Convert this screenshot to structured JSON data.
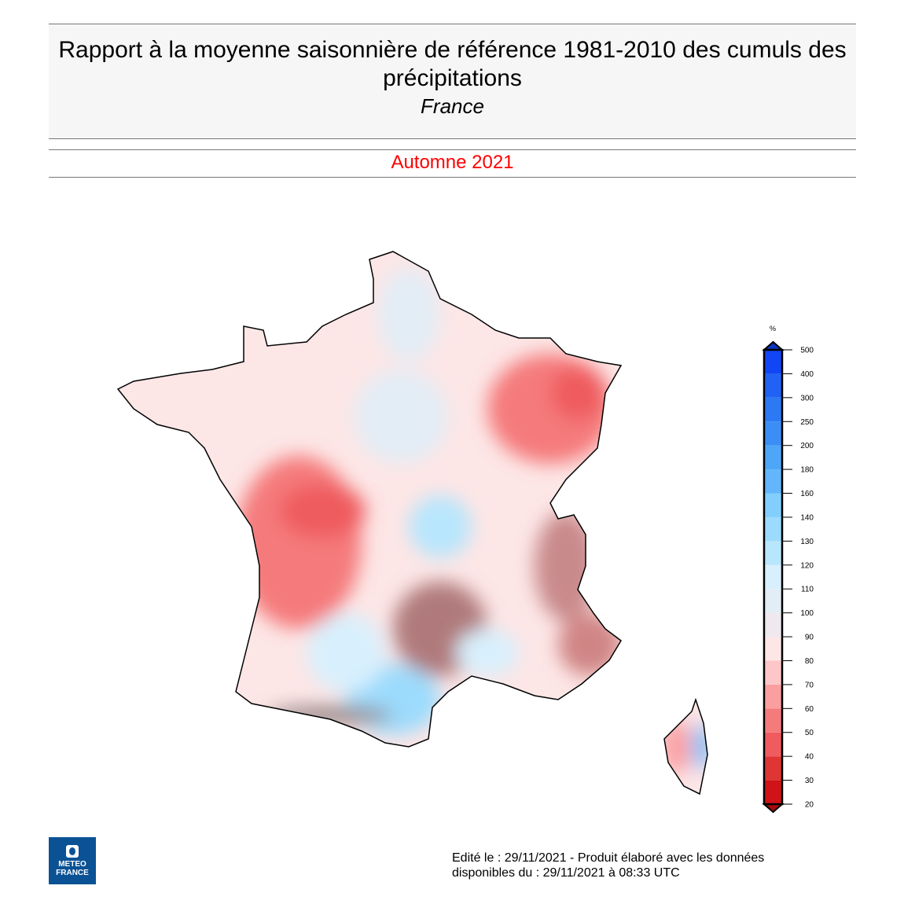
{
  "header": {
    "title": "Rapport à la moyenne saisonnière de référence 1981-2010 des cumuls des précipitations",
    "region": "France",
    "period": "Automne 2021"
  },
  "legend": {
    "unit": "%",
    "ticks": [
      "20",
      "30",
      "40",
      "50",
      "60",
      "70",
      "80",
      "90",
      "100",
      "110",
      "120",
      "130",
      "140",
      "160",
      "180",
      "200",
      "250",
      "300",
      "400",
      "500"
    ],
    "colors": [
      "#d01318",
      "#e03535",
      "#ef5b5f",
      "#f57a7c",
      "#fa9ea0",
      "#fdc6c8",
      "#fde6e6",
      "#efe9ef",
      "#e3edf6",
      "#d8f0fd",
      "#b8e6fd",
      "#9cdbfd",
      "#82cffe",
      "#63b6fb",
      "#4ea6f8",
      "#3a8ef6",
      "#2b7af4",
      "#1f62f4",
      "#1146f5"
    ],
    "over_color": "#0b35c0",
    "under_color": "#a80a0e"
  },
  "footer": {
    "line1": "Edité le : 29/11/2021 - Produit élaboré avec les données",
    "line2": "disponibles du : 29/11/2021 à 08:33 UTC"
  },
  "logo": {
    "line1": "METEO",
    "line2": "FRANCE"
  }
}
